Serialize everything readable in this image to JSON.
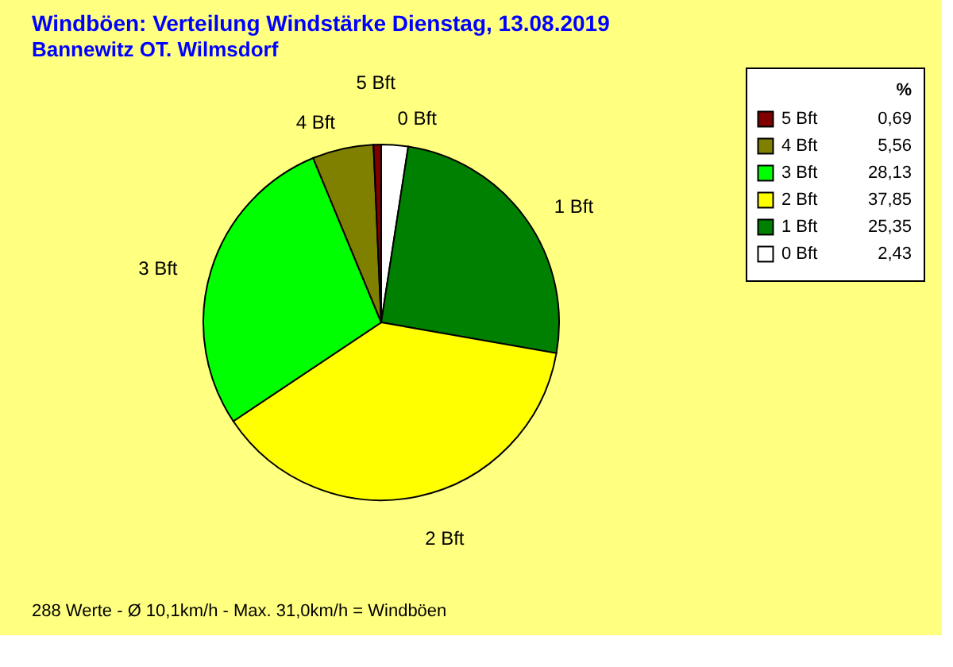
{
  "chart_data": {
    "type": "pie",
    "title": "Windböen: Verteilung Windstärke  Dienstag, 13.08.2019",
    "subtitle": "Bannewitz OT. Wilmsdorf",
    "categories": [
      "5 Bft",
      "4 Bft",
      "3 Bft",
      "2 Bft",
      "1 Bft",
      "0 Bft"
    ],
    "values": [
      0.69,
      5.56,
      28.13,
      37.85,
      25.35,
      2.43
    ],
    "value_labels": [
      "0,69",
      "5,56",
      "28,13",
      "37,85",
      "25,35",
      "2,43"
    ],
    "colors": [
      "#800000",
      "#808000",
      "#00ff00",
      "#ffff00",
      "#008000",
      "#ffffff"
    ],
    "legend_title": "%",
    "legend": "right",
    "annotations": [
      "288 Werte   -   Ø 10,1km/h  -  Max. 31,0km/h = Windböen"
    ]
  }
}
